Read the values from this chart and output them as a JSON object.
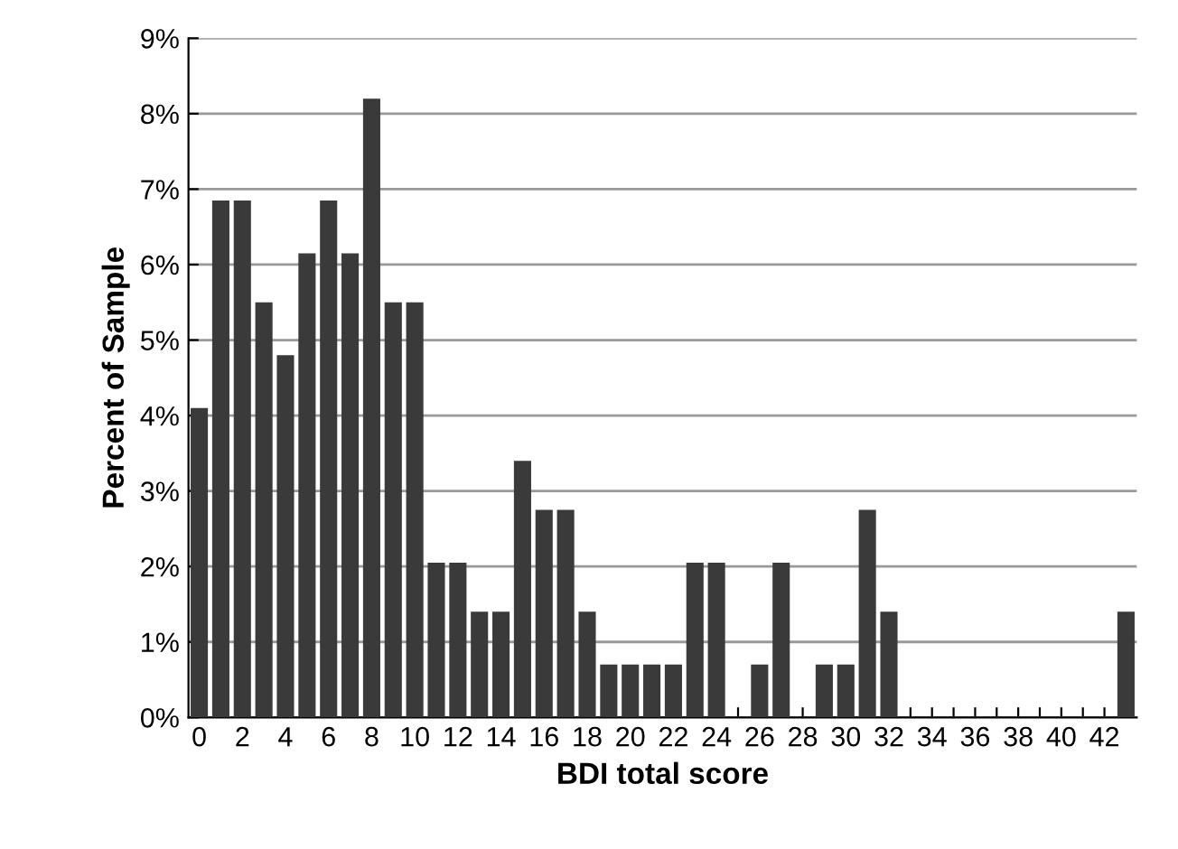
{
  "chart_data": {
    "type": "bar",
    "xlabel": "BDI total score",
    "ylabel": "Percent of Sample",
    "categories": [
      "0",
      null,
      "2",
      null,
      "4",
      null,
      "6",
      null,
      "8",
      null,
      "10",
      null,
      "12",
      null,
      "14",
      null,
      "16",
      null,
      "18",
      null,
      "20",
      null,
      "22",
      null,
      "24",
      null,
      "26",
      null,
      "28",
      null,
      "30",
      null,
      "32",
      null,
      "34",
      null,
      "36",
      null,
      "38",
      null,
      "40",
      null,
      "42",
      null
    ],
    "values": [
      4.1,
      6.85,
      6.85,
      5.5,
      4.8,
      6.15,
      6.85,
      6.15,
      8.2,
      5.5,
      5.5,
      2.05,
      2.05,
      1.4,
      1.4,
      3.4,
      2.75,
      2.75,
      1.4,
      0.7,
      0.7,
      0.7,
      0.7,
      2.05,
      2.05,
      0,
      0.7,
      2.05,
      0,
      0.7,
      0.7,
      2.75,
      1.4,
      0,
      0,
      0,
      0,
      0,
      0,
      0,
      0,
      0,
      0,
      1.4
    ],
    "color": "#3a3a3a",
    "ylim": [
      0,
      9
    ],
    "yticks": [
      {
        "value": 0,
        "label": "0%"
      },
      {
        "value": 1,
        "label": "1%"
      },
      {
        "value": 2,
        "label": "2%"
      },
      {
        "value": 3,
        "label": "3%"
      },
      {
        "value": 4,
        "label": "4%"
      },
      {
        "value": 5,
        "label": "5%"
      },
      {
        "value": 6,
        "label": "6%"
      },
      {
        "value": 7,
        "label": "7%"
      },
      {
        "value": 8,
        "label": "8%"
      },
      {
        "value": 9,
        "label": "9%"
      }
    ],
    "grid": "y",
    "legend": false
  }
}
